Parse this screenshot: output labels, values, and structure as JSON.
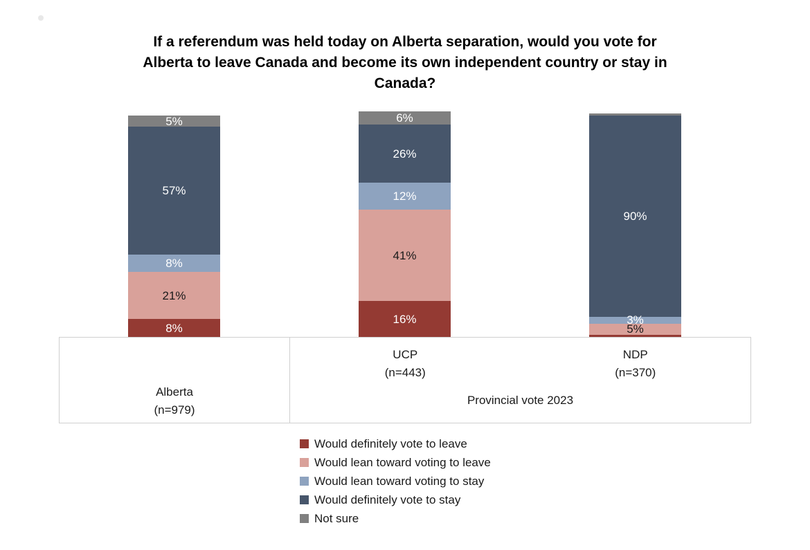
{
  "page": {
    "background": "#ffffff"
  },
  "chart_data": {
    "type": "bar",
    "subtype": "stacked-vertical",
    "title": "If a referendum was held today on Alberta separation, would you vote for Alberta to leave Canada and become its own independent country or stay in Canada?",
    "unit": "%",
    "ylim": [
      0,
      100
    ],
    "grid": false,
    "legend_position": "bottom-left",
    "categories": [
      {
        "label": "Alberta",
        "sublabel": "(n=979)",
        "group": ""
      },
      {
        "label": "UCP",
        "sublabel": "(n=443)",
        "group": "Provincial vote 2023"
      },
      {
        "label": "NDP",
        "sublabel": "(n=370)",
        "group": "Provincial vote 2023"
      }
    ],
    "group_label_right": "Provincial vote 2023",
    "series": [
      {
        "name": "Would definitely vote to leave",
        "color": "#943A33",
        "label_color": "#ffffff",
        "values": [
          8,
          16,
          1
        ],
        "labels": [
          "8%",
          "16%",
          ""
        ]
      },
      {
        "name": "Would lean toward voting to leave",
        "color": "#D9A19A",
        "label_color": "#1a1a1a",
        "values": [
          21,
          41,
          5
        ],
        "labels": [
          "21%",
          "41%",
          "5%"
        ]
      },
      {
        "name": "Would lean toward voting to stay",
        "color": "#8EA3BF",
        "label_color": "#ffffff",
        "values": [
          8,
          12,
          3
        ],
        "labels": [
          "8%",
          "12%",
          "3%"
        ]
      },
      {
        "name": "Would definitely vote to stay",
        "color": "#47566B",
        "label_color": "#ffffff",
        "values": [
          57,
          26,
          90
        ],
        "labels": [
          "57%",
          "26%",
          "90%"
        ]
      },
      {
        "name": "Not sure",
        "color": "#808080",
        "label_color": "#ffffff",
        "values": [
          5,
          6,
          1
        ],
        "labels": [
          "5%",
          "6%",
          ""
        ]
      }
    ]
  }
}
